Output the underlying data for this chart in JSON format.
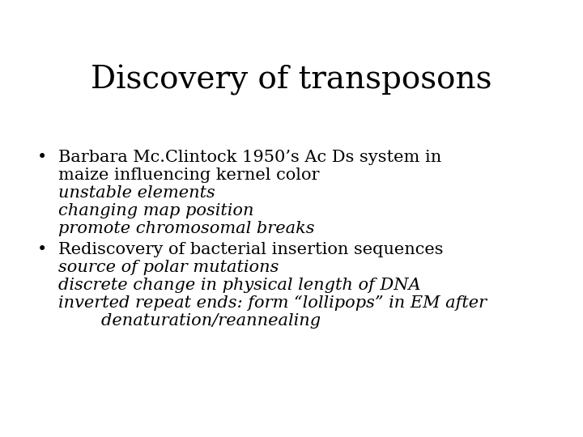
{
  "title": "Discovery of transposons",
  "background_color": "#ffffff",
  "title_fontsize": 28,
  "body_fontsize": 15,
  "text_color": "#000000",
  "bullet1_line1": "Barbara Mc.Clintock 1950’s Ac Ds system in",
  "bullet1_line2": "maize influencing kernel color",
  "bullet1_italic": [
    "unstable elements",
    "changing map position",
    "promote chromosomal breaks"
  ],
  "bullet2_line1": "Rediscovery of bacterial insertion sequences",
  "bullet2_italic": [
    "source of polar mutations",
    "discrete change in physical length of DNA",
    "inverted repeat ends: form “lollipops” in EM after",
    "        denaturation/reannealing"
  ]
}
